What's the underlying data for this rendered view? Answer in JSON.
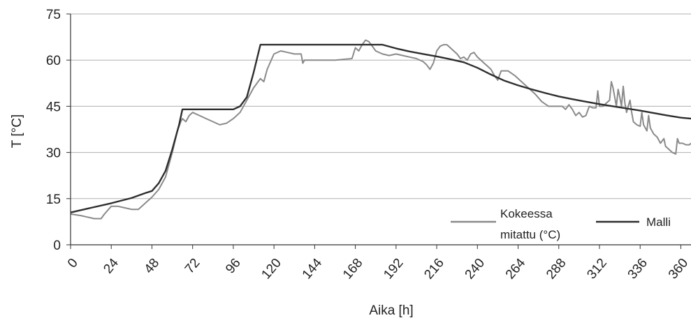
{
  "chart_data": {
    "type": "line",
    "title": "",
    "xlabel": "Aika [h]",
    "ylabel": "T [°C]",
    "xlim": [
      0,
      366
    ],
    "ylim": [
      0,
      75
    ],
    "x_ticks": [
      0,
      24,
      48,
      72,
      96,
      120,
      144,
      168,
      192,
      216,
      240,
      264,
      288,
      312,
      336,
      360
    ],
    "y_ticks": [
      0,
      15,
      30,
      45,
      60,
      75
    ],
    "grid": "horizontal",
    "legend_position": "bottom-right",
    "series": [
      {
        "name": "Kokeessa mitattu (°C)",
        "color": "#8a8a8a",
        "points": [
          [
            0,
            10
          ],
          [
            6,
            9.5
          ],
          [
            10,
            9
          ],
          [
            14,
            8.5
          ],
          [
            18,
            8.5
          ],
          [
            20,
            10
          ],
          [
            24,
            12.5
          ],
          [
            28,
            12.5
          ],
          [
            32,
            12
          ],
          [
            36,
            11.5
          ],
          [
            40,
            11.5
          ],
          [
            44,
            13.5
          ],
          [
            48,
            15.5
          ],
          [
            52,
            18
          ],
          [
            56,
            22
          ],
          [
            60,
            30
          ],
          [
            63,
            37
          ],
          [
            65,
            40
          ],
          [
            66,
            41
          ],
          [
            68,
            40
          ],
          [
            70,
            42
          ],
          [
            72,
            43
          ],
          [
            76,
            42
          ],
          [
            80,
            41
          ],
          [
            84,
            40
          ],
          [
            88,
            39
          ],
          [
            92,
            39.5
          ],
          [
            96,
            41
          ],
          [
            100,
            43
          ],
          [
            104,
            47
          ],
          [
            108,
            51
          ],
          [
            112,
            54
          ],
          [
            114,
            53
          ],
          [
            116,
            57
          ],
          [
            120,
            62
          ],
          [
            124,
            63
          ],
          [
            128,
            62.5
          ],
          [
            132,
            62
          ],
          [
            136,
            62
          ],
          [
            137,
            59
          ],
          [
            138,
            60
          ],
          [
            144,
            60
          ],
          [
            156,
            60
          ],
          [
            166,
            60.5
          ],
          [
            168,
            64
          ],
          [
            170,
            63
          ],
          [
            172,
            65
          ],
          [
            174,
            66.5
          ],
          [
            176,
            66
          ],
          [
            178,
            64.5
          ],
          [
            180,
            63
          ],
          [
            184,
            62
          ],
          [
            188,
            61.5
          ],
          [
            192,
            62
          ],
          [
            196,
            61.5
          ],
          [
            200,
            61
          ],
          [
            204,
            60.5
          ],
          [
            208,
            59.5
          ],
          [
            210,
            58.5
          ],
          [
            212,
            57
          ],
          [
            214,
            59
          ],
          [
            216,
            63
          ],
          [
            218,
            64.5
          ],
          [
            220,
            65
          ],
          [
            222,
            65
          ],
          [
            224,
            64
          ],
          [
            226,
            63
          ],
          [
            228,
            62
          ],
          [
            230,
            60.5
          ],
          [
            232,
            61
          ],
          [
            234,
            60
          ],
          [
            236,
            62
          ],
          [
            238,
            62.5
          ],
          [
            240,
            61
          ],
          [
            244,
            59
          ],
          [
            248,
            57
          ],
          [
            250,
            55
          ],
          [
            252,
            53.5
          ],
          [
            254,
            56.5
          ],
          [
            258,
            56.5
          ],
          [
            262,
            55
          ],
          [
            266,
            53
          ],
          [
            270,
            51
          ],
          [
            274,
            49
          ],
          [
            278,
            46.5
          ],
          [
            282,
            45
          ],
          [
            286,
            45
          ],
          [
            290,
            45
          ],
          [
            292,
            44
          ],
          [
            294,
            45.5
          ],
          [
            296,
            44
          ],
          [
            298,
            42
          ],
          [
            300,
            43
          ],
          [
            302,
            41.5
          ],
          [
            304,
            42
          ],
          [
            306,
            45
          ],
          [
            308,
            44.5
          ],
          [
            310,
            44.5
          ],
          [
            311,
            50
          ],
          [
            312,
            45
          ],
          [
            314,
            45
          ],
          [
            316,
            46
          ],
          [
            318,
            47
          ],
          [
            319,
            53
          ],
          [
            320,
            51
          ],
          [
            321,
            48
          ],
          [
            322,
            45
          ],
          [
            323,
            50.5
          ],
          [
            324,
            48
          ],
          [
            325,
            45
          ],
          [
            326,
            51.5
          ],
          [
            327,
            46
          ],
          [
            328,
            43
          ],
          [
            329,
            45
          ],
          [
            330,
            47
          ],
          [
            331,
            43
          ],
          [
            332,
            40
          ],
          [
            334,
            39
          ],
          [
            336,
            38.5
          ],
          [
            337,
            43
          ],
          [
            338,
            39
          ],
          [
            340,
            37
          ],
          [
            341,
            42
          ],
          [
            342,
            38
          ],
          [
            344,
            36
          ],
          [
            346,
            35
          ],
          [
            348,
            33
          ],
          [
            350,
            34.5
          ],
          [
            351,
            32
          ],
          [
            353,
            31
          ],
          [
            355,
            30
          ],
          [
            357,
            29.5
          ],
          [
            358,
            34.5
          ],
          [
            359,
            33
          ],
          [
            361,
            33
          ],
          [
            363,
            32.5
          ],
          [
            365,
            32.5
          ],
          [
            366,
            33
          ]
        ]
      },
      {
        "name": "Malli",
        "color": "#2e2e2e",
        "points": [
          [
            0,
            10.5
          ],
          [
            12,
            12
          ],
          [
            24,
            13.5
          ],
          [
            36,
            15.2
          ],
          [
            44,
            16.8
          ],
          [
            48,
            17.5
          ],
          [
            52,
            20
          ],
          [
            56,
            24
          ],
          [
            60,
            31
          ],
          [
            64,
            39
          ],
          [
            66,
            44
          ],
          [
            72,
            44
          ],
          [
            96,
            44
          ],
          [
            100,
            45
          ],
          [
            104,
            48
          ],
          [
            108,
            56
          ],
          [
            112,
            65
          ],
          [
            120,
            65
          ],
          [
            144,
            65
          ],
          [
            168,
            65
          ],
          [
            184,
            65
          ],
          [
            192,
            63.8
          ],
          [
            200,
            62.8
          ],
          [
            208,
            62
          ],
          [
            216,
            61.2
          ],
          [
            224,
            60.3
          ],
          [
            232,
            59.3
          ],
          [
            240,
            57.5
          ],
          [
            248,
            55.3
          ],
          [
            256,
            53.3
          ],
          [
            264,
            51.8
          ],
          [
            272,
            50.5
          ],
          [
            280,
            49.3
          ],
          [
            288,
            48.2
          ],
          [
            296,
            47.3
          ],
          [
            304,
            46.5
          ],
          [
            312,
            45.7
          ],
          [
            320,
            45
          ],
          [
            328,
            44.3
          ],
          [
            336,
            43.6
          ],
          [
            344,
            42.8
          ],
          [
            352,
            42
          ],
          [
            360,
            41.3
          ],
          [
            366,
            41
          ]
        ]
      }
    ]
  },
  "legend": {
    "measured_line1": "Kokeessa",
    "measured_line2": "mitattu (°C)",
    "model": "Malli"
  }
}
